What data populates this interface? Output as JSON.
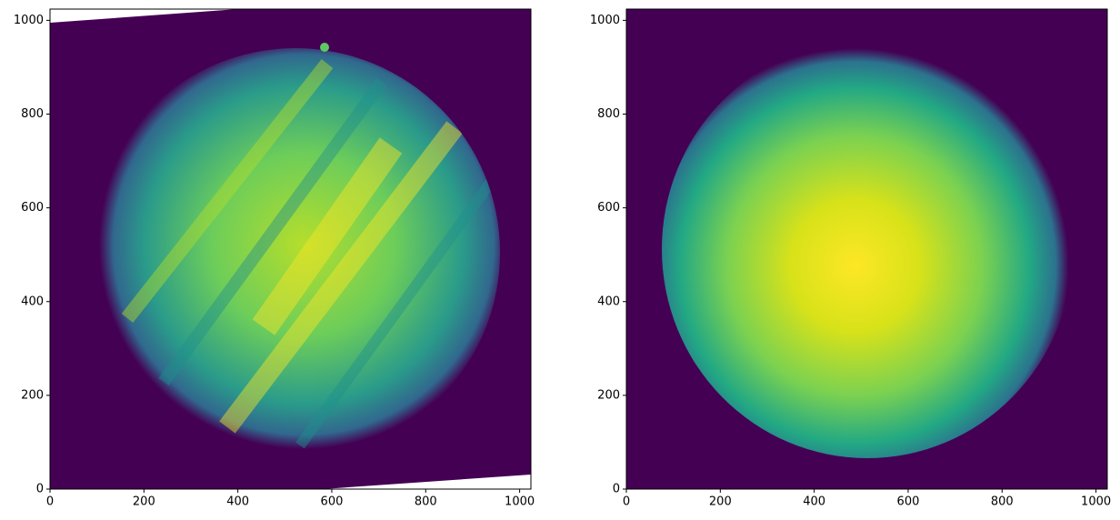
{
  "chart_data": [
    {
      "type": "image",
      "xlim": [
        0,
        1024
      ],
      "ylim": [
        0,
        1024
      ],
      "xticks": [
        0,
        200,
        400,
        600,
        800,
        1000
      ],
      "yticks": [
        0,
        200,
        400,
        600,
        800,
        1000
      ]
    },
    {
      "type": "image",
      "xlim": [
        0,
        1024
      ],
      "ylim": [
        0,
        1024
      ],
      "xticks": [
        0,
        200,
        400,
        600,
        800,
        1000
      ],
      "yticks": [
        0,
        200,
        400,
        600,
        800,
        1000
      ]
    }
  ]
}
